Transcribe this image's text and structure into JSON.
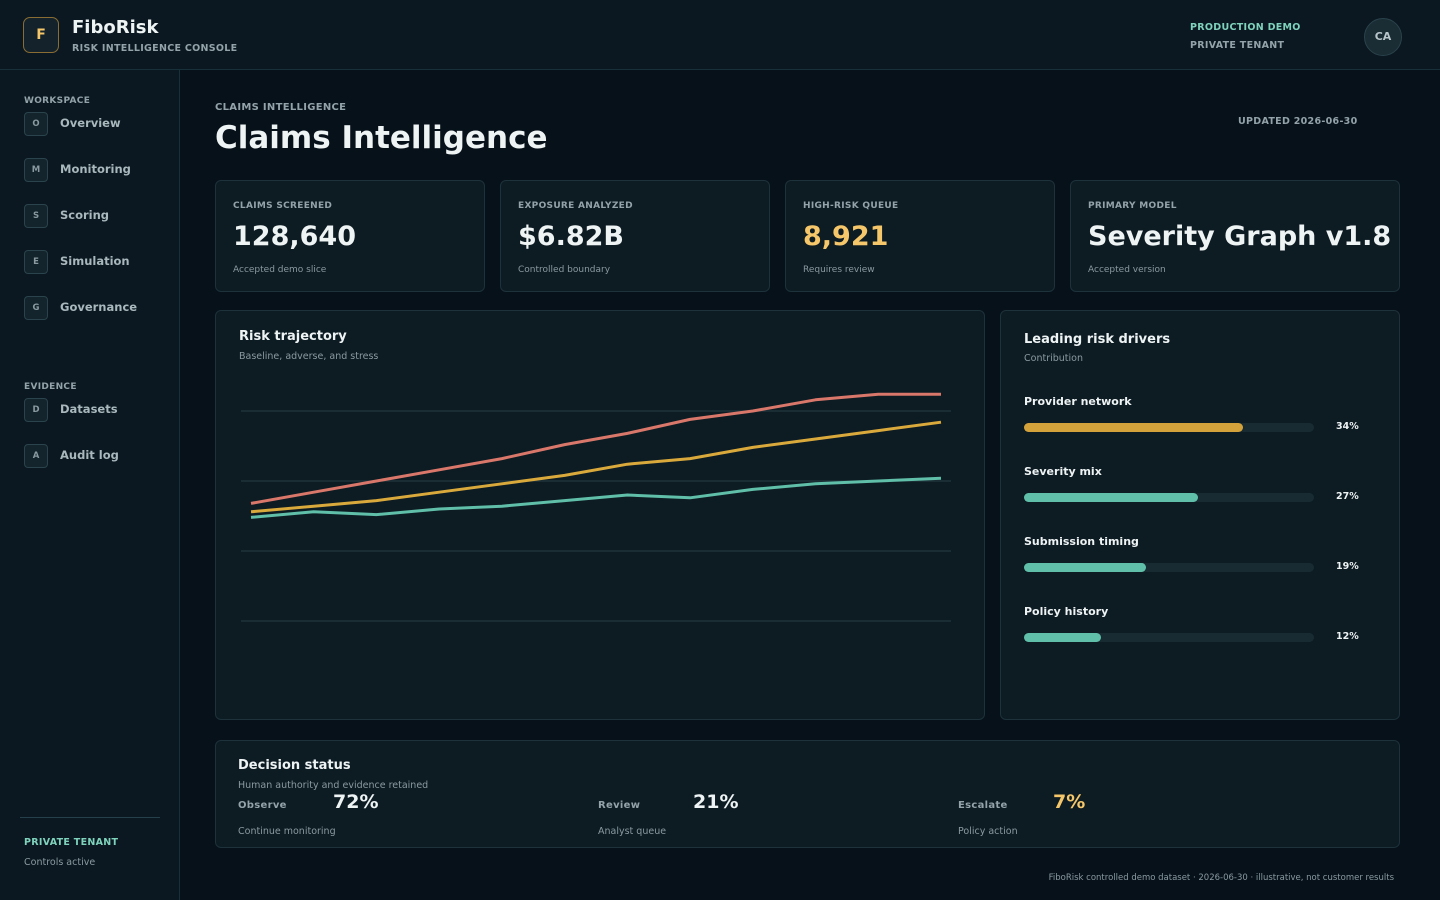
{
  "brand": {
    "logo": "F",
    "name": "FiboRisk",
    "tagline": "RISK INTELLIGENCE CONSOLE"
  },
  "header": {
    "env": "PRODUCTION DEMO",
    "tenant": "PRIVATE TENANT",
    "avatar": "CA"
  },
  "sidebar": {
    "sections": [
      {
        "title": "WORKSPACE",
        "items": [
          {
            "icon": "O",
            "label": "Overview"
          },
          {
            "icon": "M",
            "label": "Monitoring"
          },
          {
            "icon": "S",
            "label": "Scoring"
          },
          {
            "icon": "E",
            "label": "Simulation"
          },
          {
            "icon": "G",
            "label": "Governance"
          }
        ]
      },
      {
        "title": "EVIDENCE",
        "items": [
          {
            "icon": "D",
            "label": "Datasets"
          },
          {
            "icon": "A",
            "label": "Audit log"
          }
        ]
      }
    ],
    "footer": {
      "title": "PRIVATE TENANT",
      "status": "Controls active"
    }
  },
  "page": {
    "eyebrow": "CLAIMS INTELLIGENCE",
    "title": "Claims Intelligence",
    "updated": "UPDATED 2026-06-30"
  },
  "kpis": [
    {
      "label": "CLAIMS SCREENED",
      "value": "128,640",
      "note": "Accepted demo slice"
    },
    {
      "label": "EXPOSURE ANALYZED",
      "value": "$6.82B",
      "note": "Controlled boundary"
    },
    {
      "label": "HIGH-RISK QUEUE",
      "value": "8,921",
      "note": "Requires review",
      "color": "#f5c76a"
    },
    {
      "label": "PRIMARY MODEL",
      "value": "Severity Graph v1.8",
      "note": "Accepted version"
    }
  ],
  "chart_data": {
    "type": "line",
    "title": "Risk trajectory",
    "subtitle": "Baseline, adverse, and stress",
    "categories": [
      null,
      null,
      null,
      null,
      null,
      null,
      null,
      null,
      null,
      null,
      null,
      null
    ],
    "series": [
      {
        "color": "#d9776a",
        "values": [
          67,
          71,
          75,
          79,
          83,
          88,
          92,
          97,
          100,
          104,
          106,
          106
        ]
      },
      {
        "color": "#d9a93c",
        "values": [
          64,
          66,
          68,
          71,
          74,
          77,
          81,
          83,
          87,
          90,
          93,
          96
        ]
      },
      {
        "color": "#5fbfa8",
        "values": [
          62,
          64,
          63,
          65,
          66,
          68,
          70,
          69,
          72,
          74,
          75,
          76
        ]
      }
    ],
    "ylim": [
      0,
      110
    ],
    "yticks": [
      25,
      50,
      75,
      100
    ],
    "grid": true
  },
  "drivers": {
    "title": "Leading risk drivers",
    "subtitle": "Contribution",
    "xlim": [
      0,
      45
    ],
    "items": [
      {
        "label": "Provider network",
        "value": 34,
        "value_label": "34%",
        "color": "#d4a23a"
      },
      {
        "label": "Severity mix",
        "value": 27,
        "value_label": "27%",
        "color": "#5fbfa8"
      },
      {
        "label": "Submission timing",
        "value": 19,
        "value_label": "19%",
        "color": "#5fbfa8"
      },
      {
        "label": "Policy history",
        "value": 12,
        "value_label": "12%",
        "color": "#5fbfa8"
      }
    ]
  },
  "decision": {
    "title": "Decision status",
    "subtitle": "Human authority and evidence retained",
    "items": [
      {
        "label": "Observe",
        "value": "72%",
        "note": "Continue monitoring"
      },
      {
        "label": "Review",
        "value": "21%",
        "note": "Analyst queue"
      },
      {
        "label": "Escalate",
        "value": "7%",
        "note": "Policy action",
        "color": "#f5c76a"
      }
    ]
  },
  "footer": "FiboRisk controlled demo dataset · 2026-06-30 · illustrative, not customer results"
}
